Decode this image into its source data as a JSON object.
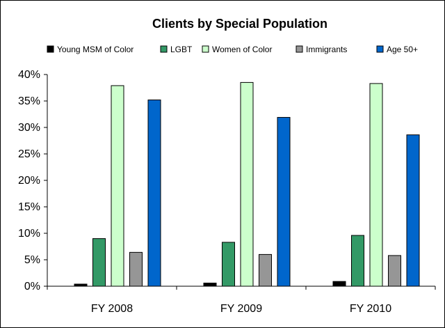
{
  "chart_data": {
    "type": "bar",
    "title": "Clients by Special Population",
    "xlabel": "",
    "ylabel": "",
    "categories": [
      "FY 2008",
      "FY 2009",
      "FY 2010"
    ],
    "ylim": [
      0,
      40
    ],
    "yticks": [
      0,
      5,
      10,
      15,
      20,
      25,
      30,
      35,
      40
    ],
    "ytick_labels": [
      "0%",
      "5%",
      "10%",
      "15%",
      "20%",
      "25%",
      "30%",
      "35%",
      "40%"
    ],
    "grid": false,
    "legend_position": "top",
    "series": [
      {
        "name": "Young MSM of Color",
        "color": "#000000",
        "values": [
          0.4,
          0.6,
          0.9
        ]
      },
      {
        "name": "LGBT",
        "color": "#339966",
        "values": [
          9.0,
          8.3,
          9.6
        ]
      },
      {
        "name": "Women of Color",
        "color": "#CCFFCC",
        "values": [
          37.9,
          38.5,
          38.3
        ]
      },
      {
        "name": "Immigrants",
        "color": "#969696",
        "values": [
          6.4,
          6.0,
          5.8
        ]
      },
      {
        "name": "Age 50+",
        "color": "#0066CC",
        "values": [
          35.2,
          31.9,
          28.6
        ]
      }
    ]
  }
}
